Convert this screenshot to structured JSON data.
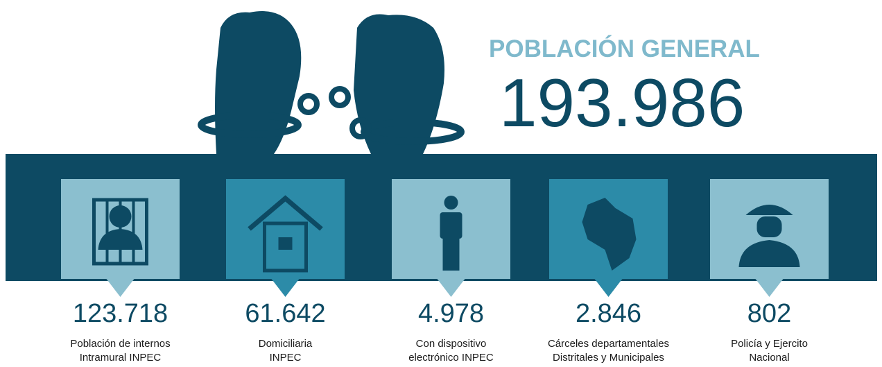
{
  "header": {
    "title": "POBLACIÓN GENERAL",
    "total": "193.986"
  },
  "items": [
    {
      "value": "123.718",
      "label": [
        "Población de internos",
        "Intramural INPEC"
      ]
    },
    {
      "value": "61.642",
      "label": [
        "Domiciliaria",
        "INPEC"
      ]
    },
    {
      "value": "4.978",
      "label": [
        "Con dispositivo",
        "electrónico INPEC"
      ]
    },
    {
      "value": "2.846",
      "label": [
        "Cárceles departamentales",
        "Distritales y Municipales"
      ]
    },
    {
      "value": "802",
      "label": [
        "Policía y Ejercito",
        "Nacional"
      ]
    }
  ]
}
